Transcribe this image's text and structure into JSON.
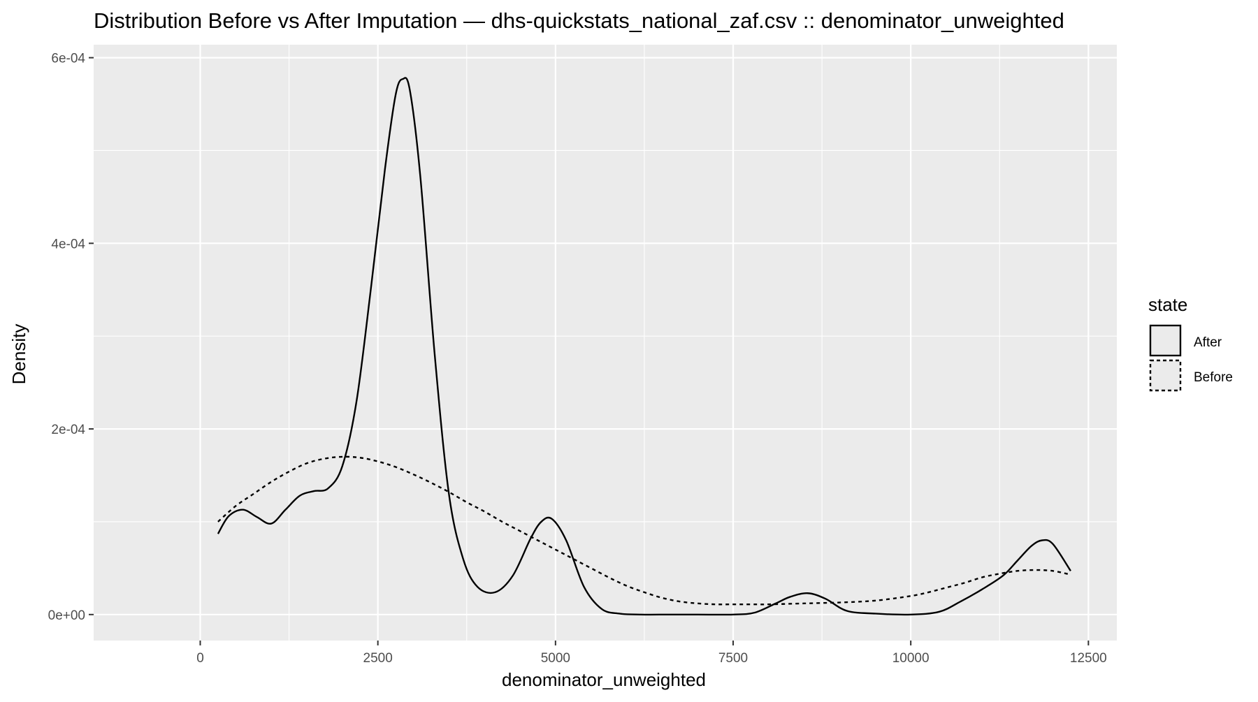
{
  "chart_data": {
    "type": "line",
    "title": "Distribution Before vs After Imputation — dhs-quickstats_national_zaf.csv :: denominator_unweighted",
    "xlabel": "denominator_unweighted",
    "ylabel": "Density",
    "xlim": [
      -1500,
      12900
    ],
    "ylim": [
      -2.8e-05,
      0.000614
    ],
    "x_ticks": [
      0,
      2500,
      5000,
      7500,
      10000,
      12500
    ],
    "x_tick_labels": [
      "0",
      "2500",
      "5000",
      "7500",
      "10000",
      "12500"
    ],
    "y_ticks": [
      0,
      0.0002,
      0.0004,
      0.0006
    ],
    "y_tick_labels": [
      "0e+00",
      "2e-04",
      "4e-04",
      "6e-04"
    ],
    "grid": true,
    "legend": {
      "title": "state",
      "position": "right",
      "entries": [
        {
          "label": "After",
          "linetype": "solid"
        },
        {
          "label": "Before",
          "linetype": "dashed"
        }
      ]
    },
    "series": [
      {
        "name": "After",
        "linetype": "solid",
        "color": "#000000",
        "x": [
          250,
          400,
          600,
          800,
          1000,
          1200,
          1400,
          1600,
          1800,
          2000,
          2200,
          2400,
          2600,
          2750,
          2850,
          2950,
          3100,
          3300,
          3500,
          3700,
          3900,
          4150,
          4400,
          4650,
          4800,
          4950,
          5150,
          5400,
          5650,
          5900,
          6200,
          6600,
          7000,
          7500,
          7800,
          8100,
          8300,
          8550,
          8800,
          9100,
          9500,
          10000,
          10400,
          10700,
          11000,
          11300,
          11500,
          11700,
          11850,
          12000,
          12250
        ],
        "y": [
          8.7e-05,
          0.000106,
          0.000113,
          0.000105,
          9.8e-05,
          0.000113,
          0.000128,
          0.000133,
          0.000136,
          0.00016,
          0.00023,
          0.00035,
          0.00048,
          0.00056,
          0.000577,
          0.000565,
          0.00047,
          0.00028,
          0.00013,
          6e-05,
          3e-05,
          2.4e-05,
          4.2e-05,
          8.2e-05,
          0.0001,
          0.000103,
          8e-05,
          3e-05,
          6e-06,
          1e-06,
          0.0,
          0.0,
          0.0,
          0.0,
          2e-06,
          1.2e-05,
          1.9e-05,
          2.3e-05,
          1.7e-05,
          4e-06,
          1e-06,
          0.0,
          3e-06,
          1.4e-05,
          2.7e-05,
          4.2e-05,
          5.8e-05,
          7.4e-05,
          8e-05,
          7.6e-05,
          4.7e-05
        ]
      },
      {
        "name": "Before",
        "linetype": "dashed",
        "color": "#000000",
        "x": [
          250,
          500,
          750,
          1000,
          1250,
          1500,
          1750,
          2000,
          2250,
          2500,
          2750,
          3000,
          3250,
          3500,
          3750,
          4000,
          4250,
          4500,
          4750,
          5000,
          5250,
          5500,
          5750,
          6000,
          6250,
          6500,
          6750,
          7000,
          7250,
          7500,
          7750,
          8000,
          8500,
          9000,
          9500,
          10000,
          10250,
          10500,
          10750,
          11000,
          11250,
          11500,
          11750,
          12000,
          12250
        ],
        "y": [
          0.0001,
          0.000117,
          0.00013,
          0.000143,
          0.000154,
          0.000163,
          0.000168,
          0.00017,
          0.000169,
          0.000165,
          0.000159,
          0.000151,
          0.000142,
          0.000132,
          0.000121,
          0.000111,
          0.0001,
          9e-05,
          8e-05,
          7e-05,
          6e-05,
          5e-05,
          4e-05,
          3.1e-05,
          2.4e-05,
          1.8e-05,
          1.4e-05,
          1.2e-05,
          1.1e-05,
          1.1e-05,
          1.1e-05,
          1.1e-05,
          1.2e-05,
          1.3e-05,
          1.5e-05,
          2e-05,
          2.4e-05,
          2.9e-05,
          3.4e-05,
          4e-05,
          4.4e-05,
          4.7e-05,
          4.8e-05,
          4.7e-05,
          4.3e-05
        ]
      }
    ]
  }
}
